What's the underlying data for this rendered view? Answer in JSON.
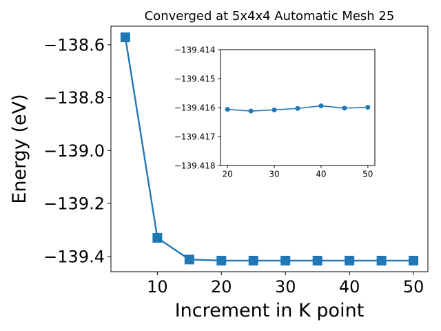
{
  "chart_data": [
    {
      "type": "line",
      "title": "Converged at 5x4x4 Automatic Mesh 25",
      "xlabel": "Increment in K point",
      "ylabel": "Energy (eV)",
      "x": [
        5,
        10,
        15,
        20,
        25,
        30,
        35,
        40,
        45,
        50
      ],
      "xlim": [
        2.75,
        52.25
      ],
      "ylim": [
        -139.458,
        -138.53
      ],
      "xticks": [
        10,
        20,
        30,
        40,
        50
      ],
      "xtick_labels": [
        "10",
        "20",
        "30",
        "40",
        "50"
      ],
      "yticks": [
        -138.6,
        -138.8,
        -139.0,
        -139.2,
        -139.4
      ],
      "ytick_labels": [
        "−138.6",
        "−138.8",
        "−139.0",
        "−139.2",
        "−139.4"
      ],
      "series": [
        {
          "values": [
            -138.572,
            -139.33,
            -139.412,
            -139.4161,
            -139.4162,
            -139.4161,
            -139.4161,
            -139.416,
            -139.4161,
            -139.4161
          ],
          "color": "#1f77b4",
          "marker": "square"
        }
      ],
      "grid": false,
      "legend": "none"
    },
    {
      "type": "line",
      "title": "",
      "xlabel": "",
      "ylabel": "",
      "x": [
        20,
        25,
        30,
        35,
        40,
        45,
        50
      ],
      "xlim": [
        18.5,
        51.5
      ],
      "ylim": [
        -139.418,
        -139.414
      ],
      "xticks": [
        20,
        30,
        40,
        50
      ],
      "xtick_labels": [
        "20",
        "30",
        "40",
        "50"
      ],
      "yticks": [
        -139.418,
        -139.417,
        -139.416,
        -139.415,
        -139.414
      ],
      "ytick_labels": [
        "−139.418",
        "−139.417",
        "−139.416",
        "−139.415",
        "−139.414"
      ],
      "series": [
        {
          "values": [
            -139.41606,
            -139.41612,
            -139.41608,
            -139.41603,
            -139.41594,
            -139.41602,
            -139.41599
          ],
          "color": "#1f77b4",
          "marker": "circle"
        }
      ],
      "grid": false,
      "legend": "none"
    }
  ]
}
